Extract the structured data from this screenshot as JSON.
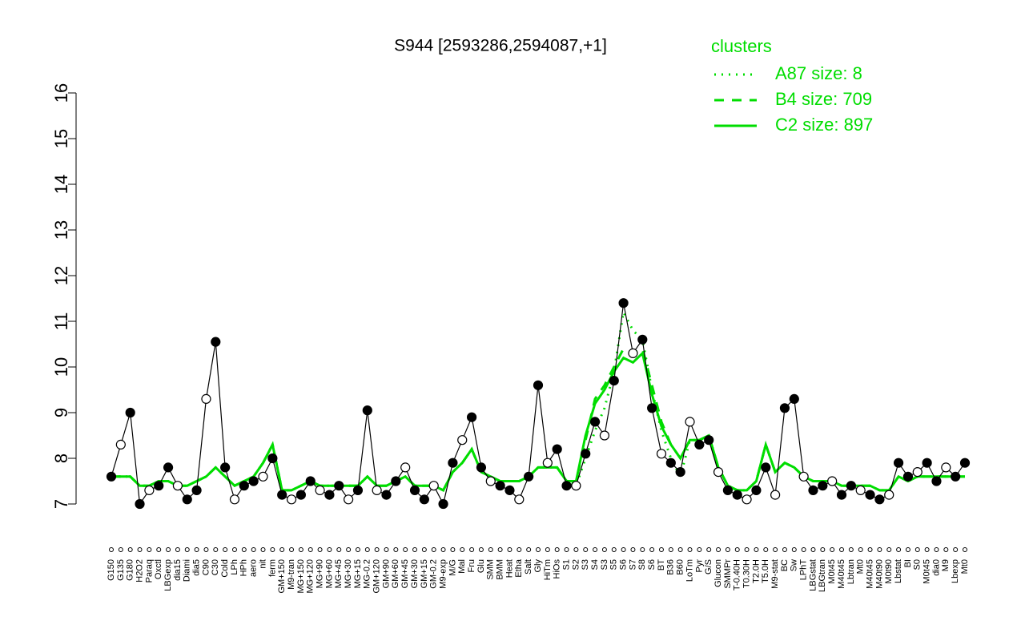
{
  "chart_data": {
    "type": "line",
    "title": "S944 [2593286,2594087,+1]",
    "legend_title": "clusters",
    "categories": [
      "G150",
      "G135",
      "G180",
      "H2O2",
      "Paraq",
      "Oxctl",
      "LBGexp",
      "dia15",
      "Diami",
      "dia5",
      "C90",
      "C30",
      "Cold",
      "LPh",
      "HPh",
      "aero",
      "nit",
      "ferm",
      "GM+150",
      "M9-tran",
      "MG+150",
      "MG+120",
      "MG+90",
      "MG+60",
      "MG+45",
      "MG+30",
      "MG+15",
      "MG-0.2",
      "GM+120",
      "GM+90",
      "GM+60",
      "GM+45",
      "GM+30",
      "GM+15",
      "GM-0.2",
      "M9-exp",
      "M/G",
      "Mal",
      "Fru",
      "Glu",
      "SMM",
      "BMM",
      "Heat",
      "Etha",
      "Salt",
      "Gly",
      "HiTm",
      "HiOs",
      "S1",
      "S2",
      "S3",
      "S4",
      "S3",
      "S5",
      "S6",
      "S7",
      "S8",
      "S6",
      "BT",
      "B36",
      "B60",
      "LoTm",
      "Pyr",
      "G/S",
      "Glucon",
      "SMMPr",
      "T-0.40H",
      "T0.30H",
      "T2.0H",
      "T5.0H",
      "M9-stat",
      "BC",
      "Sw",
      "LPhT",
      "LBGstat",
      "LBGtran",
      "M0t45",
      "M40t45",
      "Lbtran",
      "Mt0",
      "M40t45",
      "M40t90",
      "M0t90",
      "Lbstat",
      "BI",
      "S0",
      "M0t45",
      "dia0",
      "M9",
      "Lbexp",
      "Mt0"
    ],
    "values": [
      7.6,
      8.3,
      9.0,
      7.0,
      7.3,
      7.4,
      7.8,
      7.4,
      7.1,
      7.3,
      9.3,
      10.55,
      7.8,
      7.1,
      7.4,
      7.5,
      7.6,
      8.0,
      7.2,
      7.1,
      7.2,
      7.5,
      7.3,
      7.2,
      7.4,
      7.1,
      7.3,
      9.05,
      7.3,
      7.2,
      7.5,
      7.8,
      7.3,
      7.1,
      7.4,
      7.0,
      7.9,
      8.4,
      8.9,
      7.8,
      7.5,
      7.4,
      7.3,
      7.1,
      7.6,
      9.6,
      7.9,
      8.2,
      7.4,
      7.4,
      8.1,
      8.8,
      8.5,
      9.7,
      11.4,
      10.3,
      10.6,
      9.1,
      8.1,
      7.9,
      7.7,
      8.8,
      8.3,
      8.4,
      7.7,
      7.3,
      7.2,
      7.1,
      7.3,
      7.8,
      7.2,
      9.1,
      9.3,
      7.6,
      7.3,
      7.4,
      7.5,
      7.2,
      7.4,
      7.3,
      7.2,
      7.1,
      7.2,
      7.9,
      7.6,
      7.7,
      7.9,
      7.5,
      7.8,
      7.6,
      7.9
    ],
    "color": "#000000",
    "series": [
      {
        "name": "A87 size: 8",
        "color": "#00dd00",
        "dash": "dotted",
        "values": [
          7.6,
          7.6,
          7.6,
          7.4,
          7.4,
          7.5,
          7.5,
          7.4,
          7.4,
          7.5,
          7.6,
          7.8,
          7.6,
          7.4,
          7.5,
          7.6,
          7.9,
          8.3,
          7.3,
          7.3,
          7.4,
          7.5,
          7.4,
          7.4,
          7.4,
          7.4,
          7.4,
          7.6,
          7.4,
          7.4,
          7.5,
          7.6,
          7.4,
          7.4,
          7.4,
          7.3,
          7.7,
          7.9,
          8.2,
          7.7,
          7.6,
          7.5,
          7.5,
          7.5,
          7.6,
          7.8,
          7.8,
          7.8,
          7.5,
          7.4,
          8.0,
          8.6,
          9.1,
          9.9,
          11.2,
          10.8,
          10.6,
          9.5,
          8.6,
          8.0,
          7.6,
          8.4,
          8.4,
          8.5,
          7.8,
          7.4,
          7.3,
          7.3,
          7.5,
          8.3,
          7.7,
          7.9,
          7.8,
          7.6,
          7.5,
          7.5,
          7.5,
          7.4,
          7.4,
          7.4,
          7.4,
          7.3,
          7.3,
          7.6,
          7.5,
          7.6,
          7.6,
          7.6,
          7.6,
          7.6,
          7.6
        ]
      },
      {
        "name": "B4 size: 709",
        "color": "#00dd00",
        "dash": "dashed",
        "values": [
          7.6,
          7.6,
          7.6,
          7.4,
          7.4,
          7.5,
          7.5,
          7.4,
          7.4,
          7.5,
          7.6,
          7.8,
          7.6,
          7.4,
          7.5,
          7.6,
          7.9,
          8.3,
          7.3,
          7.3,
          7.4,
          7.5,
          7.4,
          7.4,
          7.4,
          7.4,
          7.4,
          7.6,
          7.4,
          7.4,
          7.5,
          7.6,
          7.4,
          7.4,
          7.4,
          7.3,
          7.7,
          7.9,
          8.2,
          7.7,
          7.6,
          7.5,
          7.5,
          7.5,
          7.6,
          7.8,
          7.8,
          7.8,
          7.5,
          7.5,
          8.4,
          9.3,
          9.6,
          10.0,
          10.4,
          10.3,
          10.4,
          9.6,
          8.8,
          8.3,
          8.0,
          8.4,
          8.4,
          8.5,
          7.8,
          7.4,
          7.3,
          7.3,
          7.5,
          8.3,
          7.7,
          7.9,
          7.8,
          7.6,
          7.5,
          7.5,
          7.5,
          7.4,
          7.4,
          7.4,
          7.4,
          7.3,
          7.3,
          7.6,
          7.5,
          7.6,
          7.6,
          7.6,
          7.6,
          7.6,
          7.6
        ]
      },
      {
        "name": "C2 size: 897",
        "color": "#00dd00",
        "dash": "solid",
        "values": [
          7.6,
          7.6,
          7.6,
          7.4,
          7.4,
          7.5,
          7.5,
          7.4,
          7.4,
          7.5,
          7.6,
          7.8,
          7.6,
          7.4,
          7.5,
          7.6,
          7.9,
          8.3,
          7.3,
          7.3,
          7.4,
          7.5,
          7.4,
          7.4,
          7.4,
          7.4,
          7.4,
          7.6,
          7.4,
          7.4,
          7.5,
          7.6,
          7.4,
          7.4,
          7.4,
          7.3,
          7.7,
          7.9,
          8.2,
          7.7,
          7.6,
          7.5,
          7.5,
          7.5,
          7.6,
          7.8,
          7.8,
          7.8,
          7.5,
          7.5,
          8.5,
          9.2,
          9.5,
          9.9,
          10.2,
          10.1,
          10.3,
          9.4,
          8.7,
          8.3,
          8.0,
          8.4,
          8.4,
          8.5,
          7.8,
          7.4,
          7.3,
          7.3,
          7.5,
          8.3,
          7.7,
          7.9,
          7.8,
          7.6,
          7.5,
          7.5,
          7.5,
          7.4,
          7.4,
          7.4,
          7.4,
          7.3,
          7.3,
          7.6,
          7.5,
          7.6,
          7.6,
          7.6,
          7.6,
          7.6,
          7.6
        ]
      }
    ],
    "ylim": [
      7,
      16
    ],
    "yticks": [
      7,
      8,
      9,
      10,
      11,
      12,
      13,
      14,
      15,
      16
    ],
    "grid": false
  }
}
